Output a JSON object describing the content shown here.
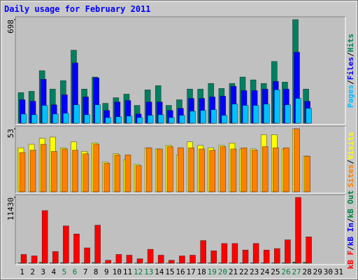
{
  "chart_data": {
    "type": "bar",
    "title": "Daily usage for February 2011",
    "categories": [
      "1",
      "2",
      "3",
      "4",
      "5",
      "6",
      "7",
      "8",
      "9",
      "10",
      "11",
      "12",
      "13",
      "14",
      "15",
      "16",
      "17",
      "18",
      "19",
      "20",
      "21",
      "22",
      "23",
      "24",
      "25",
      "26",
      "27",
      "28",
      "29",
      "30",
      "31"
    ],
    "highlight_categories": [
      "5",
      "6",
      "12",
      "13",
      "19",
      "20",
      "26",
      "27"
    ],
    "highlight_color": "#008040",
    "legend_separator": "/",
    "panels": [
      {
        "ylim": [
          0,
          698
        ],
        "yticks": [
          698
        ],
        "series": [
          {
            "name": "Pages",
            "color": "#00c0ff",
            "values": [
              62,
              57,
              120,
              62,
              67,
              124,
              57,
              124,
              38,
              43,
              48,
              38,
              53,
              57,
              38,
              53,
              81,
              86,
              91,
              53,
              129,
              120,
              120,
              129,
              225,
              124,
              167,
              100,
              null,
              null,
              null
            ]
          },
          {
            "name": "Files",
            "color": "#0000ff",
            "values": [
              158,
              148,
              296,
              124,
              191,
              406,
              177,
              306,
              86,
              143,
              153,
              62,
              143,
              143,
              86,
              100,
              167,
              167,
              177,
              182,
              249,
              220,
              220,
              230,
              282,
              230,
              478,
              148,
              null,
              null,
              null
            ]
          },
          {
            "name": "Hits",
            "color": "#008060",
            "values": [
              206,
              215,
              354,
              230,
              287,
              492,
              230,
              311,
              134,
              172,
              196,
              120,
              225,
              253,
              120,
              158,
              230,
              230,
              268,
              234,
              268,
              311,
              292,
              268,
              416,
              277,
              698,
              230,
              null,
              null,
              null
            ]
          }
        ]
      },
      {
        "ylim": [
          0,
          53
        ],
        "yticks": [
          53
        ],
        "series": [
          {
            "name": "Sites",
            "color": "#ff8000",
            "values": [
              33,
              35,
              40,
              34,
              36,
              35,
              32,
              40,
              24,
              31,
              31,
              22,
              37,
              36,
              38,
              37,
              37,
              36,
              35,
              38,
              36,
              37,
              35,
              38,
              37,
              37,
              53,
              30,
              null,
              null,
              null
            ]
          },
          {
            "name": "Visits",
            "color": "#ffff00",
            "values": [
              37,
              40,
              45,
              46,
              37,
              42,
              34,
              41,
              25,
              32,
              27,
              23,
              37,
              36,
              39,
              31,
              42,
              39,
              37,
              39,
              41,
              36,
              36,
              48,
              48,
              36,
              53,
              30,
              null,
              null,
              null
            ]
          }
        ]
      },
      {
        "ylim": [
          0,
          11430
        ],
        "yticks": [
          11430
        ],
        "series": [
          {
            "name": "kB F",
            "color": "#ff0000",
            "values": [
              1524,
              1270,
              9144,
              2032,
              6477,
              5080,
              2667,
              6604,
              508,
              1524,
              1397,
              762,
              2413,
              1397,
              508,
              1270,
              1397,
              3937,
              2159,
              3429,
              3429,
              2286,
              3429,
              2286,
              2540,
              4064,
              11430,
              4572,
              null,
              null,
              null
            ]
          },
          {
            "name": "kB In",
            "color": "#0000ff",
            "values": [
              0,
              0,
              0,
              0,
              0,
              0,
              0,
              0,
              0,
              0,
              0,
              0,
              0,
              0,
              0,
              0,
              0,
              0,
              0,
              0,
              0,
              0,
              0,
              0,
              0,
              0,
              0,
              0,
              null,
              null,
              null
            ]
          },
          {
            "name": "kB Out",
            "color": "#008040",
            "values": [
              60,
              50,
              150,
              60,
              100,
              90,
              60,
              110,
              20,
              40,
              40,
              30,
              50,
              40,
              20,
              40,
              40,
              70,
              50,
              60,
              60,
              50,
              60,
              50,
              50,
              70,
              200,
              150,
              null,
              null,
              null
            ]
          }
        ]
      }
    ]
  }
}
